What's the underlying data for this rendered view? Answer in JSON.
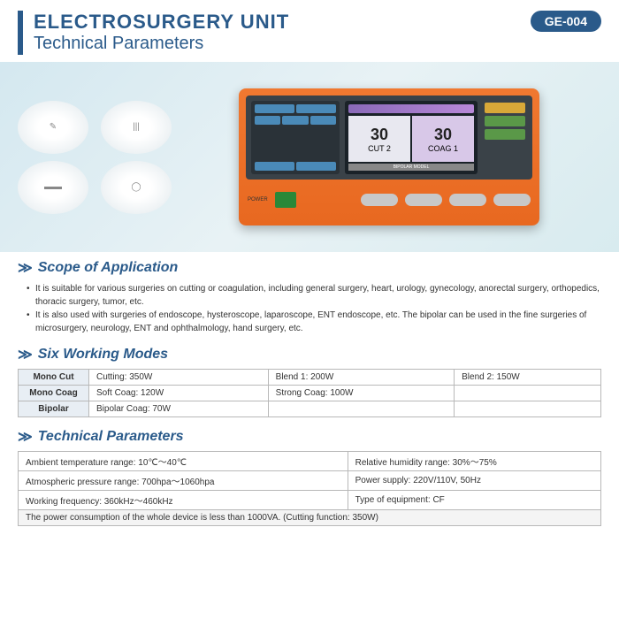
{
  "header": {
    "title": "ELECTROSURGERY UNIT",
    "subtitle": "Technical Parameters",
    "badge": "GE-004",
    "accent_color": "#2a5a8a"
  },
  "device": {
    "body_color": "#e86820",
    "screen_values": {
      "left_num": "30",
      "left_label": "CUT 2",
      "right_num": "30",
      "right_label": "COAG 1",
      "mode": "BIPOLAR MODEL"
    },
    "power_label": "POWER"
  },
  "scope": {
    "title": "Scope of Application",
    "items": [
      "It is suitable for various surgeries on cutting or coagulation, including general surgery, heart, urology, gynecology, anorectal surgery, orthopedics, thoracic surgery, tumor, etc.",
      "It is also used with surgeries of endoscope, hysteroscope, laparoscope, ENT endoscope, etc. The bipolar can be used in the fine surgeries of microsurgery, neurology, ENT and ophthalmology, hand surgery, etc."
    ]
  },
  "modes": {
    "title": "Six Working Modes",
    "rows": [
      {
        "head": "Mono Cut",
        "cells": [
          "Cutting: 350W",
          "Blend 1: 200W",
          "Blend 2: 150W"
        ]
      },
      {
        "head": "Mono Coag",
        "cells": [
          "Soft Coag: 120W",
          "Strong Coag: 100W",
          ""
        ]
      },
      {
        "head": "Bipolar",
        "cells": [
          "Bipolar Coag: 70W",
          "",
          ""
        ]
      }
    ]
  },
  "tech": {
    "title": "Technical Parameters",
    "rows": [
      [
        "Ambient temperature range: 10℃～40℃",
        "Relative humidity range: 30%～75%"
      ],
      [
        "Atmospheric pressure range: 700hpa～1060hpa",
        "Power supply: 220V/110V, 50Hz"
      ],
      [
        "Working frequency: 360kHz～460kHz",
        "Type of equipment: CF"
      ]
    ],
    "footer": "The power consumption of the whole device is less than 1000VA. (Cutting function: 350W)"
  }
}
